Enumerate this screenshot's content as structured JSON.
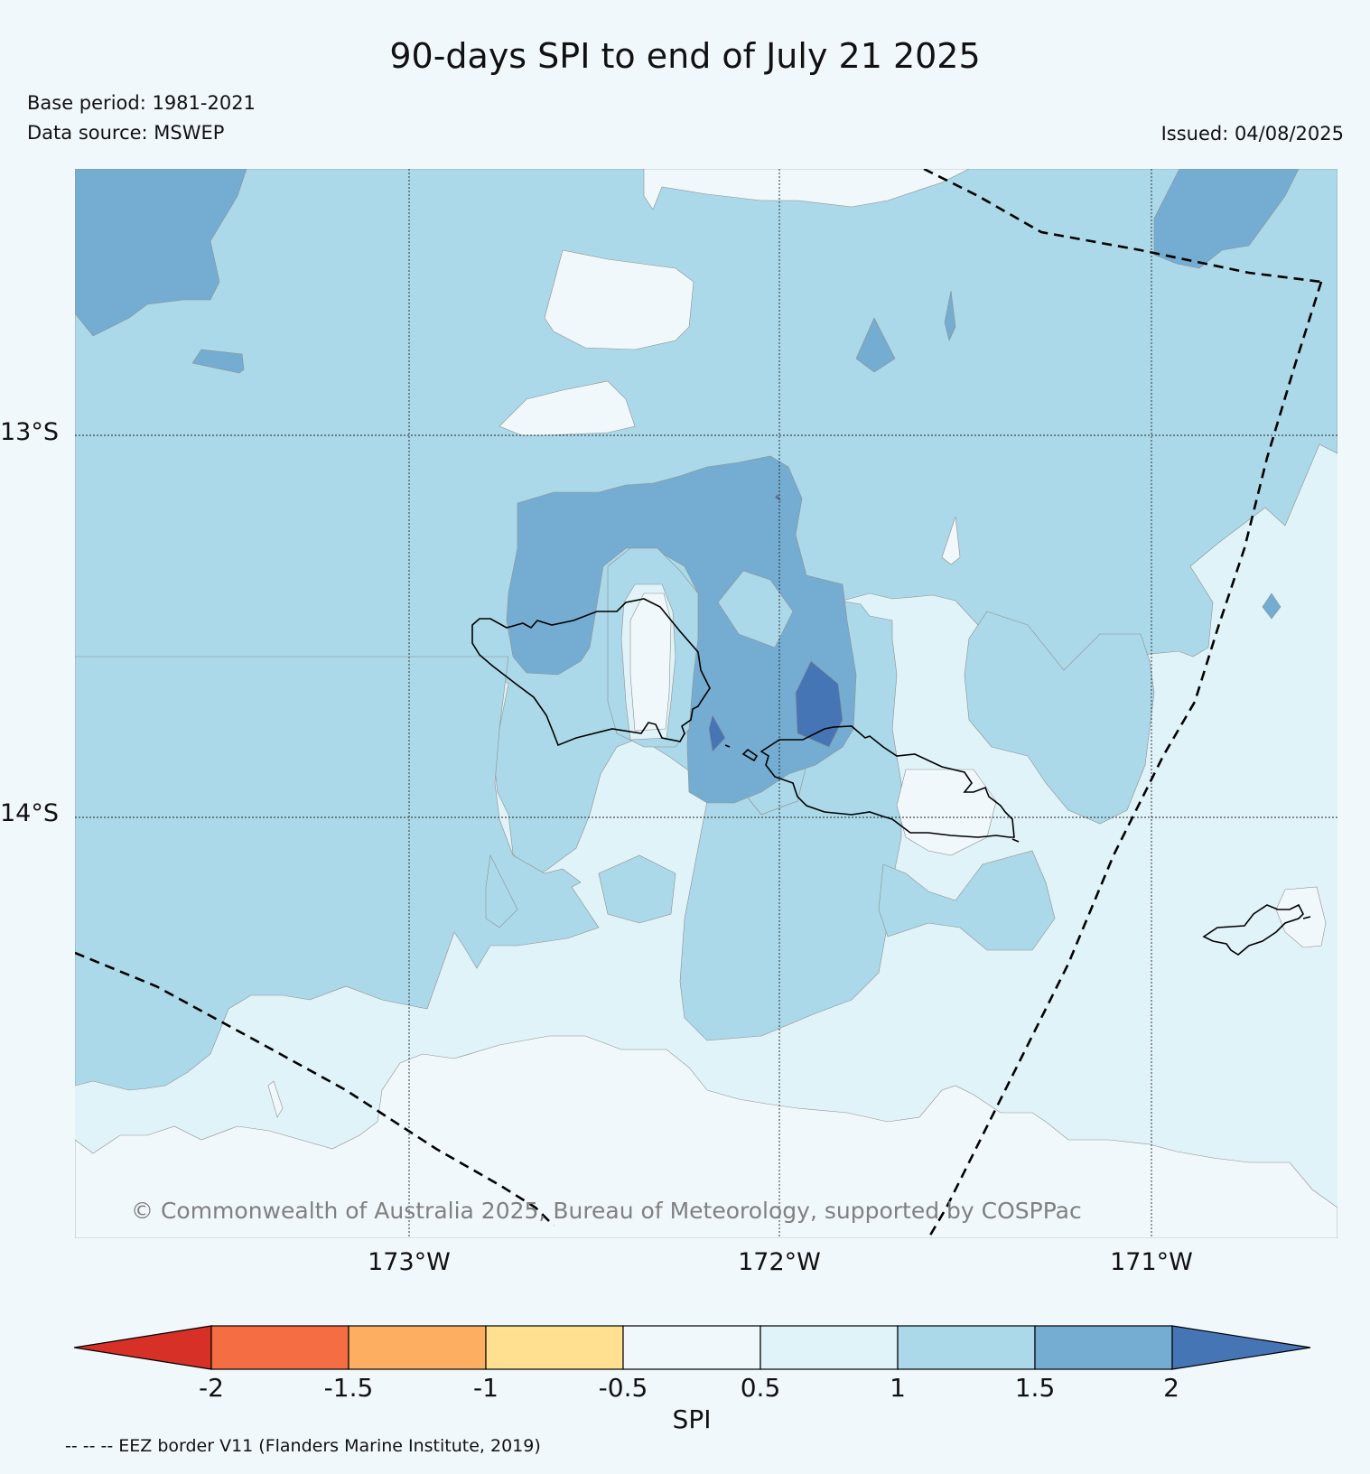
{
  "title": "90-days SPI to end of July 21 2025",
  "base_period": "Base period: 1981-2021",
  "data_source": "Data source: MSWEP",
  "issued": "Issued: 04/08/2025",
  "copyright": "© Commonwealth of Australia 2025, Bureau of Meteorology, supported by COSPPac",
  "map": {
    "lat_labels": [
      "13°S",
      "14°S"
    ],
    "lon_labels": [
      "173°W",
      "172°W",
      "171°W"
    ]
  },
  "colorbar": {
    "title": "SPI",
    "ticks": [
      "-2",
      "-1.5",
      "-1",
      "-0.5",
      "0.5",
      "1",
      "1.5",
      "2"
    ],
    "colors": [
      "#d73027",
      "#f46d43",
      "#fdae61",
      "#fee090",
      "#f1f8fc",
      "#e0f3f8",
      "#abd9e9",
      "#74add1",
      "#4575b4"
    ]
  },
  "footnote": "-- -- -- EEZ border V11 (Flanders Marine Institute, 2019)"
}
